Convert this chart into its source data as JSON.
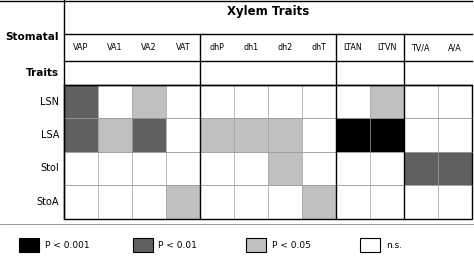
{
  "title": "Xylem Traits",
  "row_header": "Stomatal",
  "row_subheader": "Traits",
  "col_labels": [
    "VAP",
    "VA1",
    "VA2",
    "VAT",
    "dhP",
    "dh1",
    "dh2",
    "dhT",
    "LTAN",
    "LTVN",
    "TV/A",
    "A/A"
  ],
  "row_labels": [
    "LSN",
    "LSA",
    "StoI",
    "StoA"
  ],
  "colors": {
    "black": "#000000",
    "dark_gray": "#606060",
    "light_gray": "#c0c0c0",
    "white": "#ffffff"
  },
  "grid": [
    [
      "dark_gray",
      "white",
      "light_gray",
      "white",
      "white",
      "white",
      "white",
      "white",
      "white",
      "light_gray",
      "white",
      "white"
    ],
    [
      "dark_gray",
      "light_gray",
      "dark_gray",
      "white",
      "light_gray",
      "light_gray",
      "light_gray",
      "white",
      "black",
      "black",
      "white",
      "white"
    ],
    [
      "white",
      "white",
      "white",
      "white",
      "white",
      "white",
      "light_gray",
      "white",
      "white",
      "white",
      "dark_gray",
      "dark_gray"
    ],
    [
      "white",
      "white",
      "white",
      "light_gray",
      "white",
      "white",
      "white",
      "light_gray",
      "white",
      "white",
      "white",
      "white"
    ]
  ],
  "group_separators": [
    4,
    8,
    10
  ],
  "legend": [
    {
      "color": "black",
      "label": "P < 0.001"
    },
    {
      "color": "dark_gray",
      "label": "P < 0.01"
    },
    {
      "color": "light_gray",
      "label": "P < 0.05"
    },
    {
      "color": "white",
      "label": "n.s."
    }
  ],
  "fig_w": 4.74,
  "fig_h": 2.65,
  "dpi": 100
}
